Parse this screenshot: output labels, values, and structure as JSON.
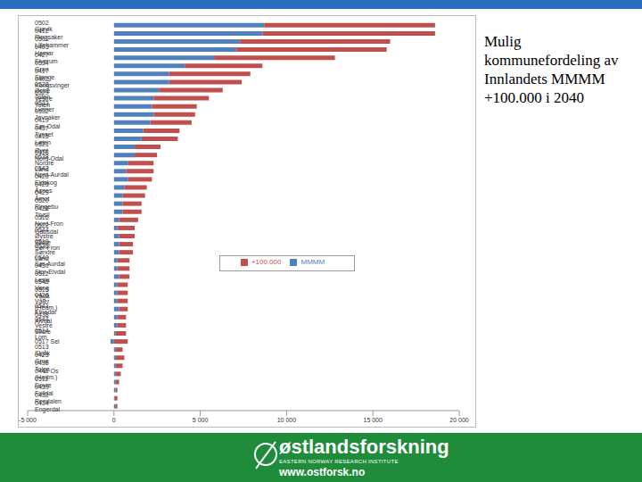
{
  "chart_data": {
    "type": "bar",
    "title": "Mulig kommunefordeling av Innlandets MMMM +100.000 i 2040",
    "orientation": "horizontal",
    "stacked": true,
    "grid": false,
    "legend": "center",
    "annotations": [
      "østlandsforskning",
      "EASTERN NORWAY RESEARCH INSTITUTE",
      "www.ostforsk.no"
    ],
    "categories": [
      "0502 Gjøvik",
      "0412 Ringsaker",
      "0501 Lillehammer",
      "0403 Hamar",
      "0427 Elverum",
      "0534 Gran",
      "0417 Stange",
      "0402 Kongsvinger",
      "0528 Østre Toten",
      "0529 Vestre Toten",
      "0533 Lunner",
      "0532 Jevnaker",
      "0419 Sør-Odal",
      "0437 Tynset",
      "0415 Løten",
      "0521 Øyer",
      "0418 Nord-Odal",
      "0538 Nordre Land",
      "0542 Nord-Aurdal",
      "0420 Eidskog",
      "0425 Åsnes",
      "0429 Åmot",
      "0520 Ringebu",
      "0428 Trysil",
      "0516 Nord-Fron",
      "0522 Gausdal",
      "0544 Øystre Slidre",
      "0519 Sør-Fron",
      "0536 Søndre Land",
      "0540 Sør-Aurdal",
      "0430 Stor-Elvdal",
      "0512 Lesja",
      "0545 Vang",
      "0515 Vågå",
      "0426 Våler (Hedm.)",
      "0541 Etnedal",
      "0438 Alvdal",
      "0543 Vestre Slidre",
      "0514 Lom",
      "0517 Sel",
      "0513 Skjåk",
      "0423 Grue",
      "0436 Tolga",
      "0441 Os (Hedm.)",
      "0511 Dovre",
      "0439 Folldal",
      "0432 Rendalen",
      "0434 Engerdal"
    ],
    "series": [
      {
        "name": "MMMM",
        "color": "#4f81bd",
        "values": [
          8700,
          8600,
          7300,
          7100,
          5800,
          4100,
          3200,
          3200,
          2600,
          2300,
          2200,
          2300,
          2100,
          1700,
          1600,
          1200,
          1200,
          800,
          700,
          800,
          600,
          500,
          500,
          500,
          300,
          200,
          300,
          300,
          300,
          200,
          200,
          300,
          200,
          200,
          200,
          300,
          200,
          200,
          100,
          -200,
          100,
          100,
          100,
          100,
          100,
          100,
          50,
          100
        ]
      },
      {
        "name": "+100.000",
        "color": "#c0504d",
        "values": [
          9900,
          10000,
          8700,
          8700,
          7000,
          4500,
          4700,
          4200,
          3700,
          3200,
          2600,
          2400,
          2400,
          2100,
          2100,
          1500,
          1300,
          1500,
          1600,
          1400,
          1300,
          1300,
          1100,
          1100,
          1100,
          1000,
          900,
          800,
          800,
          700,
          700,
          600,
          600,
          600,
          600,
          500,
          500,
          500,
          600,
          800,
          400,
          500,
          400,
          300,
          200,
          100,
          150,
          100
        ]
      }
    ],
    "xlim": [
      -5000,
      20000
    ],
    "xticks": [
      {
        "value": -5000,
        "label": "-5 000"
      },
      0,
      {
        "value": 5000,
        "label": "5 000"
      },
      {
        "value": 10000,
        "label": "10 000"
      },
      {
        "value": 15000,
        "label": "15 000"
      },
      {
        "value": 20000,
        "label": "20 000"
      }
    ]
  }
}
